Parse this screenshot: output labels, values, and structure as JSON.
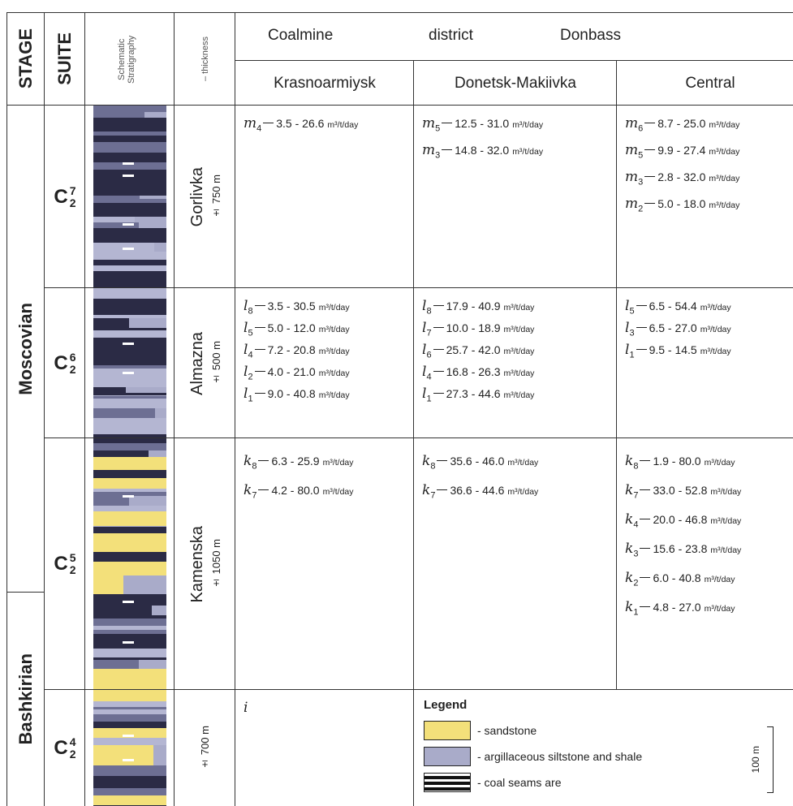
{
  "header": {
    "stage": "STAGE",
    "suite": "SUITE",
    "schematic": "Schematic Stratigraphy",
    "thickness": "– thickness",
    "district": [
      "Coalmine",
      "district",
      "Donbass"
    ],
    "columns": [
      "Krasnoarmiysk",
      "Donetsk-Makiivka",
      "Central"
    ]
  },
  "stages": [
    "Moscovian",
    "Bashkirian"
  ],
  "rows": [
    {
      "suite": {
        "base": "C",
        "sub": "2",
        "sup": "7"
      },
      "name": "Gorlivka",
      "thickness": "± 750 m",
      "cells": [
        [
          {
            "seam": "m",
            "index": "4",
            "range": "3.5 - 26.6",
            "unit": "m³/t/day"
          }
        ],
        [
          {
            "seam": "m",
            "index": "5",
            "range": "12.5 - 31.0",
            "unit": "m³/t/day"
          },
          {
            "seam": "m",
            "index": "3",
            "range": "14.8 - 32.0",
            "unit": "m³/t/day"
          }
        ],
        [
          {
            "seam": "m",
            "index": "6",
            "range": "8.7 - 25.0",
            "unit": "m³/t/day"
          },
          {
            "seam": "m",
            "index": "5",
            "range": "9.9 - 27.4",
            "unit": "m³/t/day"
          },
          {
            "seam": "m",
            "index": "3",
            "range": "2.8 - 32.0",
            "unit": "m³/t/day"
          },
          {
            "seam": "m",
            "index": "2",
            "range": "5.0 - 18.0",
            "unit": "m³/t/day"
          }
        ]
      ]
    },
    {
      "suite": {
        "base": "C",
        "sub": "2",
        "sup": "6"
      },
      "name": "Almazna",
      "thickness": "± 500 m",
      "cells": [
        [
          {
            "seam": "l",
            "index": "8",
            "range": "3.5 - 30.5",
            "unit": "m³/t/day"
          },
          {
            "seam": "l",
            "index": "5",
            "range": "5.0 - 12.0",
            "unit": "m³/t/day"
          },
          {
            "seam": "l",
            "index": "4",
            "range": "7.2 - 20.8",
            "unit": "m³/t/day"
          },
          {
            "seam": "l",
            "index": "2",
            "range": "4.0 - 21.0",
            "unit": "m³/t/day"
          },
          {
            "seam": "l",
            "index": "1",
            "range": "9.0 - 40.8",
            "unit": "m³/t/day"
          }
        ],
        [
          {
            "seam": "l",
            "index": "8",
            "range": "17.9 - 40.9",
            "unit": "m³/t/day"
          },
          {
            "seam": "l",
            "index": "7",
            "range": "10.0 - 18.9",
            "unit": "m³/t/day"
          },
          {
            "seam": "l",
            "index": "6",
            "range": "25.7 - 42.0",
            "unit": "m³/t/day"
          },
          {
            "seam": "l",
            "index": "4",
            "range": "16.8 - 26.3",
            "unit": "m³/t/day"
          },
          {
            "seam": "l",
            "index": "1",
            "range": "27.3 - 44.6",
            "unit": "m³/t/day"
          }
        ],
        [
          {
            "seam": "l",
            "index": "5",
            "range": "6.5 - 54.4",
            "unit": "m³/t/day"
          },
          {
            "seam": "l",
            "index": "3",
            "range": "6.5 - 27.0",
            "unit": "m³/t/day"
          },
          {
            "seam": "l",
            "index": "1",
            "range": "9.5 - 14.5",
            "unit": "m³/t/day"
          }
        ]
      ]
    },
    {
      "suite": {
        "base": "C",
        "sub": "2",
        "sup": "5"
      },
      "name": "Kamenska",
      "thickness": "± 1050 m",
      "cells": [
        [
          {
            "seam": "k",
            "index": "8",
            "range": "6.3 - 25.9",
            "unit": "m³/t/day"
          },
          {
            "seam": "k",
            "index": "7",
            "range": "4.2 - 80.0",
            "unit": "m³/t/day"
          }
        ],
        [
          {
            "seam": "k",
            "index": "8",
            "range": "35.6 - 46.0",
            "unit": "m³/t/day"
          },
          {
            "seam": "k",
            "index": "7",
            "range": "36.6 - 44.6",
            "unit": "m³/t/day"
          }
        ],
        [
          {
            "seam": "k",
            "index": "8",
            "range": "1.9 - 80.0",
            "unit": "m³/t/day"
          },
          {
            "seam": "k",
            "index": "7",
            "range": "33.0 - 52.8",
            "unit": "m³/t/day"
          },
          {
            "seam": "k",
            "index": "4",
            "range": "20.0 - 46.8",
            "unit": "m³/t/day"
          },
          {
            "seam": "k",
            "index": "3",
            "range": "15.6 - 23.8",
            "unit": "m³/t/day"
          },
          {
            "seam": "k",
            "index": "2",
            "range": "6.0 - 40.8",
            "unit": "m³/t/day"
          },
          {
            "seam": "k",
            "index": "1",
            "range": "4.8 - 27.0",
            "unit": "m³/t/day"
          }
        ]
      ]
    },
    {
      "suite": {
        "base": "C",
        "sub": "2",
        "sup": "4"
      },
      "thickness": "± 700 m",
      "cells": [
        [
          {
            "seam": "i"
          }
        ],
        [],
        []
      ]
    }
  ],
  "legend": {
    "title": "Legend",
    "items": [
      "- sandstone",
      "- argillaceous siltstone and shale",
      "- coal seams are"
    ],
    "scale": "100 m"
  }
}
